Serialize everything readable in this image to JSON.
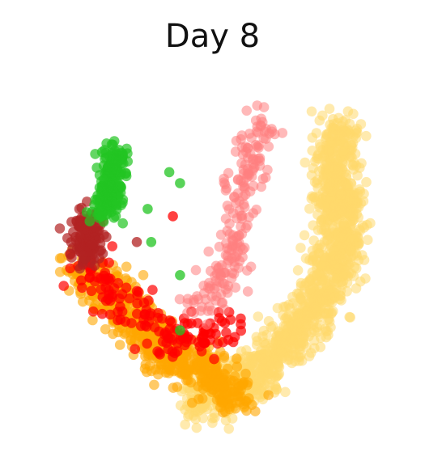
{
  "chart_data": {
    "type": "scatter",
    "title": "Day 8",
    "xlabel": "",
    "ylabel": "",
    "axes_visible": false,
    "grid": false,
    "legend": "none",
    "xlim": [
      0,
      100
    ],
    "ylim": [
      0,
      100
    ],
    "clusters": [
      {
        "color": "#ffd86b",
        "count": 1400,
        "spread": 3.2,
        "opacity": 0.55,
        "arc": [
          [
            86,
            85
          ],
          [
            84,
            79
          ],
          [
            84,
            70
          ],
          [
            85,
            63
          ],
          [
            86,
            56
          ],
          [
            84,
            46
          ],
          [
            79,
            37
          ],
          [
            72,
            28
          ],
          [
            64,
            20
          ],
          [
            54,
            14
          ],
          [
            45,
            11
          ]
        ]
      },
      {
        "color": "#ffa600",
        "count": 700,
        "spread": 3.2,
        "opacity": 0.6,
        "arc": [
          [
            14,
            47
          ],
          [
            18,
            42
          ],
          [
            24,
            38
          ],
          [
            31,
            31
          ],
          [
            38,
            24
          ],
          [
            45,
            20
          ],
          [
            52,
            16
          ],
          [
            57,
            13
          ]
        ]
      },
      {
        "color": "#ff0000",
        "count": 160,
        "spread": 3.0,
        "opacity": 0.7,
        "arc": [
          [
            14,
            52
          ],
          [
            18,
            45
          ],
          [
            25,
            38
          ],
          [
            33,
            31
          ],
          [
            42,
            28
          ],
          [
            50,
            29
          ],
          [
            56,
            31
          ]
        ]
      },
      {
        "color": "#b22222",
        "count": 130,
        "spread": 2.4,
        "opacity": 0.7,
        "arc": [
          [
            17,
            60
          ],
          [
            14,
            55
          ],
          [
            15,
            50
          ]
        ]
      },
      {
        "color": "#22c422",
        "count": 220,
        "spread": 1.8,
        "opacity": 0.7,
        "arc": [
          [
            23,
            78
          ],
          [
            22,
            72
          ],
          [
            21,
            66
          ],
          [
            20,
            62
          ]
        ]
      },
      {
        "color": "#ff8080",
        "count": 200,
        "spread": 2.6,
        "opacity": 0.55,
        "arc": [
          [
            66,
            89
          ],
          [
            63,
            84
          ],
          [
            60,
            77
          ],
          [
            58,
            68
          ],
          [
            57,
            58
          ],
          [
            55,
            50
          ],
          [
            51,
            42
          ],
          [
            47,
            36
          ]
        ]
      }
    ],
    "outliers": [
      {
        "x": 38,
        "y": 73,
        "color": "#22c422"
      },
      {
        "x": 41,
        "y": 70,
        "color": "#22c422"
      },
      {
        "x": 32,
        "y": 63,
        "color": "#22c422"
      },
      {
        "x": 33,
        "y": 54,
        "color": "#22c422"
      },
      {
        "x": 41,
        "y": 45,
        "color": "#22c422"
      },
      {
        "x": 39,
        "y": 61,
        "color": "#ff0000"
      },
      {
        "x": 29,
        "y": 54,
        "color": "#b22222"
      },
      {
        "x": 41,
        "y": 30,
        "color": "#22c422"
      }
    ]
  }
}
